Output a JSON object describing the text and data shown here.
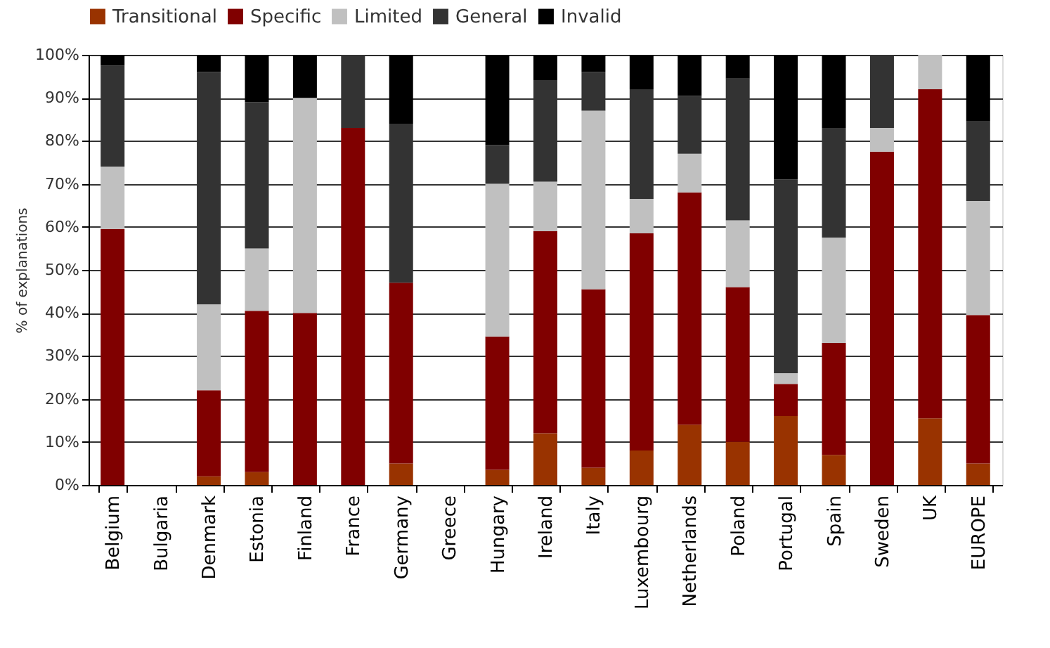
{
  "chart_data": {
    "type": "bar",
    "stacked": true,
    "ylabel": "% of explanations",
    "categories": [
      "Belgium",
      "Bulgaria",
      "Denmark",
      "Estonia",
      "Finland",
      "France",
      "Germany",
      "Greece",
      "Hungary",
      "Ireland",
      "Italy",
      "Luxembourg",
      "Netherlands",
      "Poland",
      "Portugal",
      "Spain",
      "Sweden",
      "UK",
      "EUROPE"
    ],
    "series": [
      {
        "name": "Transitional",
        "color": "#993300",
        "values": [
          0,
          null,
          2,
          3,
          0,
          0,
          5,
          null,
          3.5,
          12,
          4,
          8,
          14,
          10,
          16,
          7,
          0,
          15.5,
          5
        ]
      },
      {
        "name": "Specific",
        "color": "#800000",
        "values": [
          59.5,
          null,
          20,
          37.5,
          40,
          83,
          42,
          null,
          31,
          47,
          41.5,
          50.5,
          54,
          36,
          7.5,
          26,
          77.5,
          76.5,
          34.5
        ]
      },
      {
        "name": "Limited",
        "color": "#c0c0c0",
        "values": [
          14.5,
          null,
          20,
          14.5,
          50,
          0,
          0,
          null,
          35.5,
          11.5,
          41.5,
          8,
          9,
          15.5,
          2.5,
          24.5,
          5.5,
          8,
          26.5
        ]
      },
      {
        "name": "General",
        "color": "#333333",
        "values": [
          23.5,
          null,
          54,
          34,
          0,
          17,
          37,
          null,
          9,
          23.5,
          9,
          25.5,
          13.5,
          33,
          45,
          25.5,
          17,
          0,
          18.5
        ]
      },
      {
        "name": "Invalid",
        "color": "#000000",
        "values": [
          2.5,
          null,
          4,
          11,
          10,
          0,
          16,
          null,
          21,
          6,
          4,
          8,
          9.5,
          5.5,
          29,
          17,
          0,
          0,
          15.5
        ]
      }
    ],
    "ylim": [
      0,
      100
    ],
    "yticks": [
      {
        "value": 0,
        "label": "0%"
      },
      {
        "value": 10,
        "label": "10%"
      },
      {
        "value": 20,
        "label": "20%"
      },
      {
        "value": 30,
        "label": "30%"
      },
      {
        "value": 40,
        "label": "40%"
      },
      {
        "value": 50,
        "label": "50%"
      },
      {
        "value": 60,
        "label": "60%"
      },
      {
        "value": 70,
        "label": "70%"
      },
      {
        "value": 80,
        "label": "80%"
      },
      {
        "value": 90,
        "label": "90%"
      },
      {
        "value": 100,
        "label": "100%"
      }
    ],
    "grid": "y",
    "legend": "top"
  }
}
